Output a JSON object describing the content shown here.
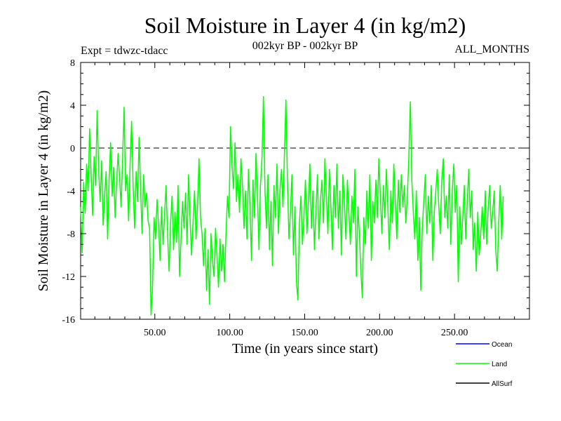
{
  "chart_data": {
    "type": "line",
    "title": "Soil Moisture in Layer 4 (in kg/m2)",
    "subtitle_left": "Expt = tdwzc-tdacc",
    "subtitle_center": "002kyr BP - 002kyr BP",
    "subtitle_right": "ALL_MONTHS",
    "xlabel": "Time (in years since start)",
    "ylabel": "Soil Moisture in Layer 4 (in kg/m2)",
    "xlim": [
      0.5,
      300
    ],
    "ylim": [
      -16,
      8
    ],
    "x_ticks": [
      50,
      100,
      150,
      200,
      250
    ],
    "x_tick_labels": [
      "50.00",
      "100.00",
      "150.00",
      "200.00",
      "250.00"
    ],
    "y_ticks": [
      -16,
      -12,
      -8,
      -4,
      0,
      4,
      8
    ],
    "y_tick_labels": [
      "-16",
      "-12",
      "-8",
      "-4",
      "0",
      "4",
      "8"
    ],
    "reference_line": 0,
    "legend": [
      {
        "name": "Ocean",
        "color": "#0000ff"
      },
      {
        "name": "Land",
        "color": "#00ff00"
      },
      {
        "name": "AllSurf",
        "color": "#000000"
      }
    ],
    "series": [
      {
        "name": "Land",
        "color": "#00ff00",
        "x_start": 0.5,
        "x_step": 1.0,
        "values": [
          -5.5,
          -9.8,
          -3.2,
          -6.1,
          -1.5,
          -4.0,
          1.8,
          -2.5,
          -6.3,
          -0.8,
          -3.5,
          3.5,
          -2.0,
          -5.0,
          -1.2,
          -7.2,
          -4.5,
          -2.2,
          -8.5,
          -3.0,
          0.5,
          -4.5,
          -1.8,
          -6.5,
          -3.2,
          -0.5,
          -2.8,
          -5.5,
          -1.0,
          3.8,
          -4.0,
          -2.5,
          -6.8,
          -1.5,
          2.5,
          -3.5,
          -7.5,
          -2.2,
          -5.0,
          1.0,
          -3.8,
          -8.0,
          -2.5,
          -5.5,
          -4.2,
          -6.8,
          -7.5,
          -15.6,
          -12.9,
          -6.5,
          -8.5,
          -4.8,
          -7.2,
          -10.5,
          -5.5,
          -9.0,
          -6.2,
          -3.5,
          -8.0,
          -11.5,
          -7.0,
          -4.5,
          -9.5,
          -6.0,
          -8.8,
          -3.5,
          -12.0,
          -8.5,
          -5.0,
          -7.5,
          -4.2,
          -9.0,
          -2.5,
          -6.5,
          -10.0,
          -7.0,
          -4.0,
          -8.5,
          -5.5,
          -1.0,
          -6.5,
          -8.0,
          -11.0,
          -7.5,
          -13.3,
          -9.5,
          -14.6,
          -8.0,
          -10.5,
          -12.0,
          -7.5,
          -10.0,
          -13.0,
          -8.5,
          -11.5,
          -9.0,
          -12.5,
          -8.0,
          -4.5,
          -6.5,
          2.0,
          -1.5,
          -3.8,
          0.5,
          -5.0,
          -2.5,
          -6.0,
          -1.0,
          -3.5,
          -7.5,
          -4.0,
          -8.5,
          -2.0,
          -5.5,
          -10.5,
          -3.0,
          -6.5,
          -0.5,
          -4.5,
          -9.5,
          -3.5,
          -1.0,
          4.8,
          -4.0,
          -7.5,
          -2.5,
          -9.5,
          -5.0,
          -11.0,
          -3.5,
          -6.5,
          -1.5,
          -8.0,
          -4.0,
          -2.0,
          -5.5,
          -0.5,
          4.5,
          -3.0,
          -8.5,
          -6.0,
          -2.5,
          -10.0,
          -5.5,
          -12.5,
          -14.2,
          -7.0,
          -4.5,
          -9.0,
          -6.5,
          -3.0,
          -8.0,
          -5.0,
          -1.5,
          -7.5,
          -4.0,
          -9.5,
          -6.0,
          -2.5,
          -8.5,
          -5.0,
          -3.0,
          -7.0,
          -1.0,
          -4.5,
          -8.0,
          -2.0,
          -5.5,
          -9.5,
          -3.5,
          -6.5,
          -1.5,
          -7.5,
          -4.0,
          -10.0,
          -2.5,
          -5.0,
          -8.5,
          -3.0,
          -6.0,
          -9.0,
          -4.5,
          -7.0,
          -2.0,
          -12.0,
          -5.5,
          -8.0,
          -11.5,
          -14.0,
          -6.5,
          -9.0,
          -4.0,
          -7.5,
          -2.5,
          -10.5,
          -5.0,
          -7.0,
          -3.0,
          -6.5,
          -1.0,
          -4.5,
          -8.0,
          -3.5,
          -6.5,
          -2.0,
          -5.5,
          -9.5,
          -4.0,
          -7.0,
          -1.5,
          -5.0,
          -8.5,
          -3.0,
          -6.0,
          -2.5,
          -5.5,
          -3.5,
          -7.0,
          -4.5,
          -1.0,
          4.3,
          -3.0,
          -6.0,
          -8.5,
          -4.0,
          -10.5,
          -6.5,
          -13.3,
          -7.5,
          -5.0,
          -2.5,
          -8.0,
          -4.5,
          -7.0,
          -3.5,
          -10.5,
          -6.0,
          -4.0,
          -2.0,
          -5.5,
          -8.0,
          -3.0,
          -1.0,
          -6.5,
          -4.5,
          -7.5,
          -2.5,
          -9.0,
          -4.0,
          -1.5,
          -6.0,
          -3.5,
          -12.5,
          -5.5,
          -9.0,
          -6.5,
          -3.5,
          -8.5,
          -5.0,
          -2.0,
          -6.5,
          -4.0,
          -9.5,
          -7.0,
          -11.5,
          -6.0,
          -10.0,
          -8.0,
          -5.5,
          -8.5,
          -4.0,
          -9.0,
          -5.5,
          -3.5,
          -7.5,
          -6.0,
          -4.0,
          -9.5,
          -11.5,
          -7.0,
          -3.5,
          -8.5,
          -4.5
        ]
      }
    ]
  }
}
